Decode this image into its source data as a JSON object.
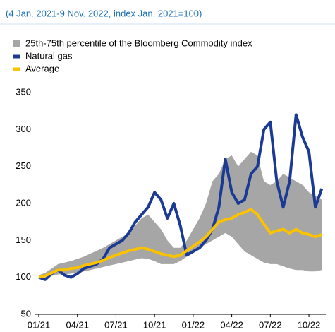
{
  "chart_data": {
    "type": "line",
    "subtitle": "(4 Jan. 2021-9 Nov. 2022, index Jan. 2021=100)",
    "x": [
      "01/21",
      null,
      null,
      null,
      null,
      null,
      "04/21",
      null,
      null,
      null,
      null,
      null,
      "07/21",
      null,
      null,
      null,
      null,
      null,
      "10/21",
      null,
      null,
      null,
      null,
      null,
      "01/22",
      null,
      null,
      null,
      null,
      null,
      "04/22",
      null,
      null,
      null,
      null,
      null,
      "07/22",
      null,
      null,
      null,
      null,
      null,
      "10/22",
      null,
      null
    ],
    "band": {
      "name": "25th-75th percentile of the Bloomberg Commodity index",
      "color": "#a6a6a6",
      "low": [
        100,
        100,
        102,
        104,
        104,
        105,
        106,
        108,
        110,
        112,
        114,
        116,
        118,
        120,
        122,
        124,
        126,
        125,
        122,
        118,
        118,
        118,
        122,
        128,
        135,
        140,
        145,
        150,
        155,
        160,
        155,
        145,
        135,
        130,
        125,
        120,
        118,
        118,
        115,
        112,
        110,
        110,
        108,
        108,
        110
      ],
      "high": [
        103,
        106,
        112,
        118,
        120,
        122,
        125,
        128,
        132,
        136,
        140,
        145,
        150,
        155,
        160,
        170,
        180,
        185,
        175,
        165,
        150,
        140,
        140,
        150,
        165,
        180,
        200,
        230,
        240,
        260,
        265,
        250,
        260,
        270,
        265,
        230,
        225,
        230,
        240,
        235,
        230,
        225,
        215,
        210,
        205
      ]
    },
    "series": [
      {
        "name": "Natural gas",
        "color": "#1b3a94",
        "values": [
          100,
          97,
          105,
          110,
          103,
          100,
          105,
          112,
          115,
          118,
          125,
          140,
          145,
          150,
          160,
          175,
          185,
          195,
          215,
          205,
          180,
          200,
          170,
          130,
          135,
          140,
          150,
          165,
          195,
          260,
          215,
          200,
          205,
          240,
          250,
          300,
          310,
          230,
          195,
          230,
          320,
          290,
          270,
          195,
          220
        ]
      },
      {
        "name": "Average",
        "color": "#fbc200",
        "values": [
          100,
          102,
          106,
          110,
          110,
          112,
          113,
          116,
          118,
          120,
          123,
          127,
          130,
          133,
          136,
          138,
          140,
          138,
          135,
          132,
          130,
          128,
          130,
          136,
          142,
          148,
          155,
          165,
          175,
          178,
          180,
          185,
          188,
          192,
          185,
          172,
          160,
          163,
          165,
          160,
          165,
          160,
          158,
          155,
          158
        ]
      }
    ],
    "ylim": [
      50,
      350
    ],
    "yticks": [
      50,
      100,
      150,
      200,
      250,
      300,
      350
    ],
    "grid": false
  }
}
